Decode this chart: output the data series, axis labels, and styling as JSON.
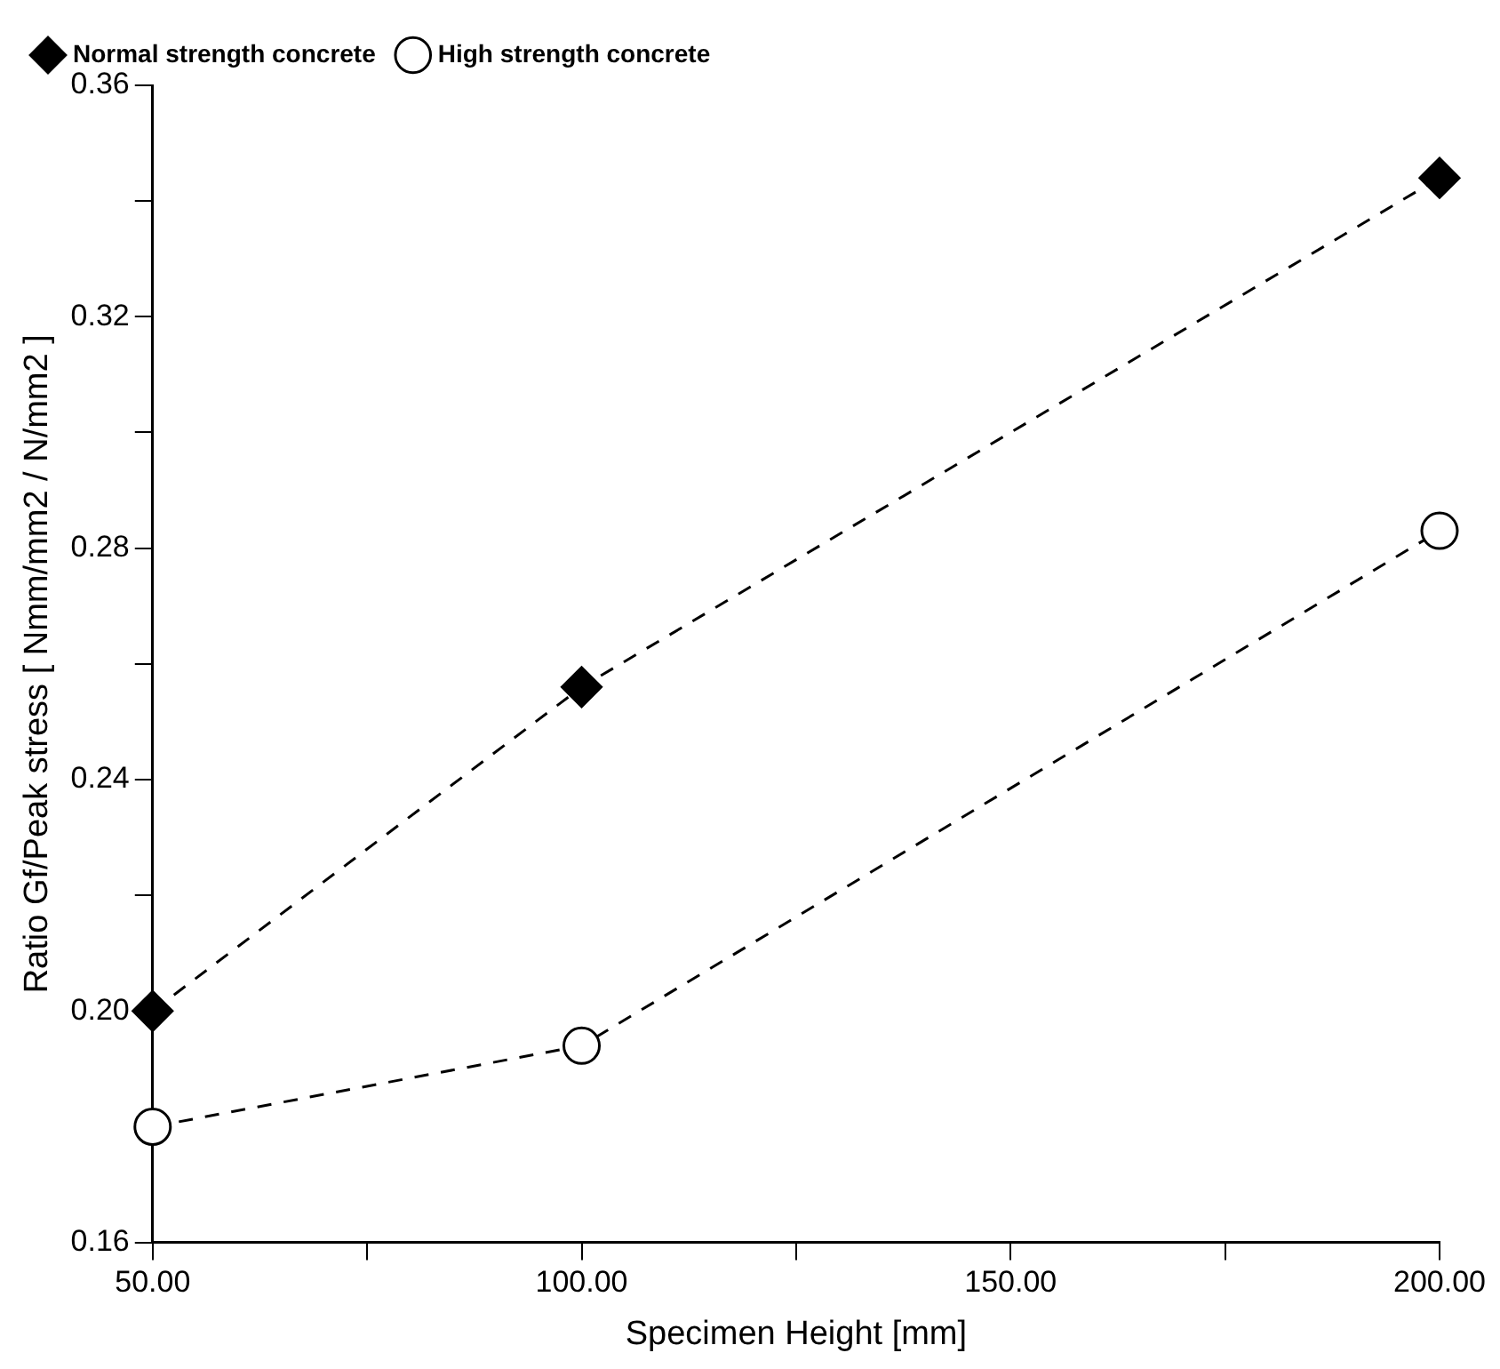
{
  "chart_data": {
    "type": "line",
    "xlabel": "Specimen Height [mm]",
    "ylabel": "Ratio Gf/Peak stress [ Nmm/mm2 / N/mm2 ]",
    "x": [
      50,
      100,
      200
    ],
    "series": [
      {
        "name": "Normal strength concrete",
        "color": "#000000",
        "marker": "diamond",
        "values": [
          0.2,
          0.256,
          0.344
        ]
      },
      {
        "name": "High strength concrete",
        "color": "#000000",
        "marker": "circle",
        "values": [
          0.18,
          0.194,
          0.283
        ]
      }
    ],
    "xlim": [
      50,
      200
    ],
    "xticks": [
      {
        "value": 50,
        "label": "50.00"
      },
      {
        "value": 75,
        "label": null
      },
      {
        "value": 100,
        "label": "100.00"
      },
      {
        "value": 125,
        "label": null
      },
      {
        "value": 150,
        "label": "150.00"
      },
      {
        "value": 175,
        "label": null
      },
      {
        "value": 200,
        "label": "200.00"
      }
    ],
    "ylim": [
      0.16,
      0.36
    ],
    "yticks": [
      0.16,
      {
        "value": 0.18,
        "label": null
      },
      {
        "value": 0.2,
        "label": "0.20"
      },
      {
        "value": 0.22,
        "label": null
      },
      0.24,
      {
        "value": 0.26,
        "label": null
      },
      0.28,
      {
        "value": 0.3,
        "label": null
      },
      0.32,
      {
        "value": 0.34,
        "label": null
      },
      0.36
    ],
    "grid": false,
    "legend": "top left",
    "line_style": "dashed"
  }
}
